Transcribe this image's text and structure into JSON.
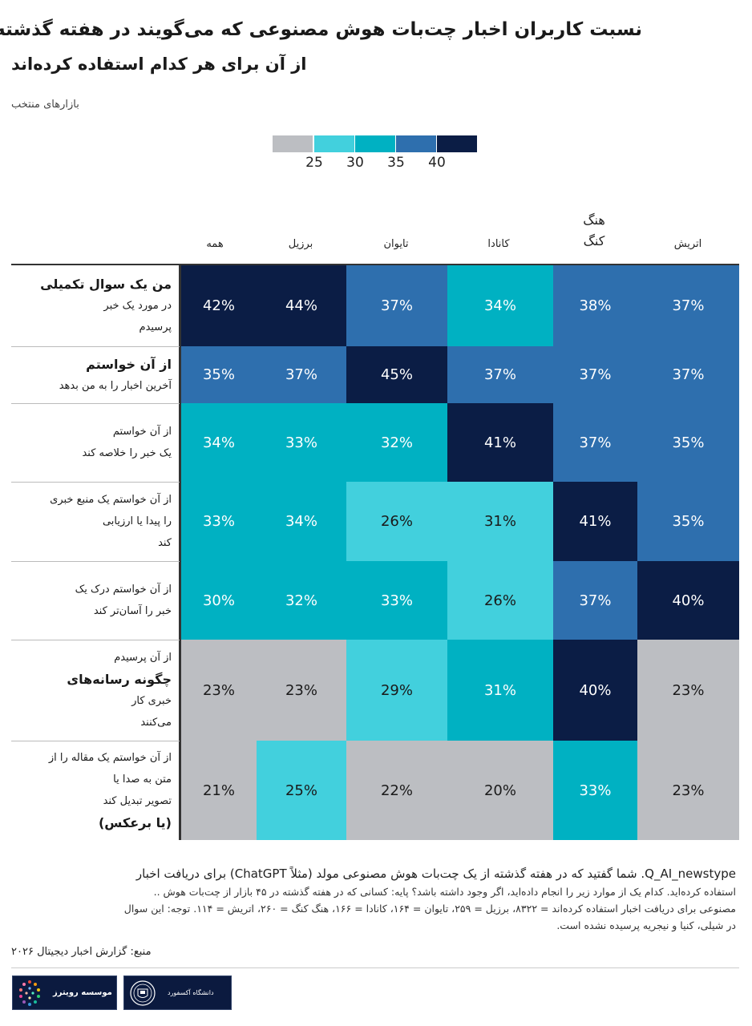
{
  "chart_data": {
    "type": "heatmap",
    "title": "نسبت کاربران اخبار چت‌بات هوش مصنوعی که می‌گویند در هفته گذشته",
    "title_line2": "از آن برای هر کدام استفاده کرده‌اند",
    "subtitle": "بازارهای منتخب",
    "legend": {
      "ticks": [
        "25",
        "30",
        "35",
        "40"
      ]
    },
    "colors": [
      "#bcbec2",
      "#42d0dd",
      "#00b1c2",
      "#2e6fae",
      "#0b1d45"
    ],
    "columns": [
      {
        "label": "همه",
        "large": false
      },
      {
        "label": "برزیل",
        "large": false
      },
      {
        "label": "تایوان",
        "large": false
      },
      {
        "label": "کانادا",
        "large": false
      },
      {
        "label_lines": [
          "هنگ",
          "کنگ"
        ],
        "large": true
      },
      {
        "label": "اتریش",
        "large": false
      }
    ],
    "rows": [
      {
        "lines": [
          "من یک سوال تکمیلی",
          "در مورد یک خبر",
          "پرسیدم"
        ],
        "big": [
          true,
          false,
          false
        ],
        "values": [
          "42%",
          "44%",
          "37%",
          "34%",
          "38%",
          "37%"
        ],
        "levels": [
          4,
          4,
          3,
          2,
          3,
          3
        ]
      },
      {
        "lines": [
          "از آن خواستم",
          "آخرین اخبار را به من بدهد"
        ],
        "big": [
          true,
          false
        ],
        "values": [
          "35%",
          "37%",
          "45%",
          "37%",
          "37%",
          "37%"
        ],
        "levels": [
          3,
          3,
          4,
          3,
          3,
          3
        ]
      },
      {
        "lines": [
          "از آن خواستم",
          "یک خبر را خلاصه کند"
        ],
        "big": [
          false,
          false
        ],
        "values": [
          "34%",
          "33%",
          "32%",
          "41%",
          "37%",
          "35%"
        ],
        "levels": [
          2,
          2,
          2,
          4,
          3,
          3
        ]
      },
      {
        "lines": [
          "از آن خواستم یک منبع خبری",
          "را پیدا یا ارزیابی",
          "کند"
        ],
        "big": [
          false,
          false,
          false
        ],
        "values": [
          "33%",
          "34%",
          "26%",
          "31%",
          "41%",
          "35%"
        ],
        "levels": [
          2,
          2,
          1,
          1,
          4,
          3
        ]
      },
      {
        "lines": [
          "از آن خواستم درک یک",
          "خبر را آسان‌تر کند"
        ],
        "big": [
          false,
          false
        ],
        "values": [
          "30%",
          "32%",
          "33%",
          "26%",
          "37%",
          "40%"
        ],
        "levels": [
          2,
          2,
          2,
          1,
          3,
          4
        ]
      },
      {
        "lines": [
          "از آن پرسیدم",
          "چگونه رسانه‌های",
          "خبری کار",
          "می‌کنند"
        ],
        "big": [
          false,
          true,
          false,
          false
        ],
        "values": [
          "23%",
          "23%",
          "29%",
          "31%",
          "40%",
          "23%"
        ],
        "levels": [
          0,
          0,
          1,
          2,
          4,
          0
        ]
      },
      {
        "lines": [
          "از آن خواستم یک مقاله را از",
          "متن به صدا یا",
          "تصویر تبدیل کند",
          "(یا برعکس)"
        ],
        "big": [
          false,
          false,
          false,
          true
        ],
        "values": [
          "21%",
          "25%",
          "22%",
          "20%",
          "33%",
          "23%"
        ],
        "levels": [
          0,
          1,
          0,
          0,
          2,
          0
        ]
      }
    ]
  },
  "notes": {
    "line1": "Q_AI_newstype. شما گفتید که در هفته گذشته از یک چت‌بات هوش مصنوعی مولد (مثلاً ChatGPT) برای دریافت اخبار",
    "line2": "استفاده کرده‌اید. کدام یک از موارد زیر را انجام داده‌اید، اگر وجود داشته باشد؟ پایه: کسانی که در هفته گذشته در ۴۵ بازار از چت‌بات هوش ..",
    "line3": "مصنوعی برای دریافت اخبار استفاده کرده‌اند = ۸۳۲۲، برزیل = ۲۵۹، تایوان = ۱۶۴، کانادا = ۱۶۶، هنگ کنگ = ۲۶۰، اتریش = ۱۱۴. توجه: این سوال",
    "line4": "در شیلی، کنیا و نیجریه پرسیده نشده است.",
    "source": "منبع: گزارش اخبار دیجیتال ۲۰۲۶"
  },
  "logos": {
    "reuters": "موسسه رویترز",
    "oxford": "دانشگاه آکسفورد"
  }
}
